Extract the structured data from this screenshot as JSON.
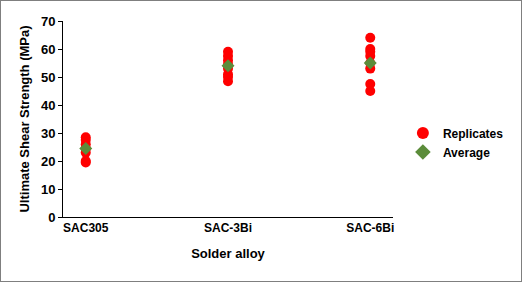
{
  "chart_data": {
    "type": "scatter",
    "x_label": "Solder alloy",
    "y_label": "Ultimate Shear Strength (MPa)",
    "categories": [
      "SAC305",
      "SAC-3Bi",
      "SAC-6Bi"
    ],
    "series": [
      {
        "name": "Replicates",
        "color": "#ff0000",
        "marker": "circle",
        "x": [
          "SAC305",
          "SAC305",
          "SAC305",
          "SAC305",
          "SAC305",
          "SAC305",
          "SAC305",
          "SAC-3Bi",
          "SAC-3Bi",
          "SAC-3Bi",
          "SAC-3Bi",
          "SAC-3Bi",
          "SAC-3Bi",
          "SAC-3Bi",
          "SAC-3Bi",
          "SAC-6Bi",
          "SAC-6Bi",
          "SAC-6Bi",
          "SAC-6Bi",
          "SAC-6Bi",
          "SAC-6Bi",
          "SAC-6Bi",
          "SAC-6Bi"
        ],
        "values": [
          28.5,
          27.5,
          26,
          24.5,
          23,
          20,
          19.5,
          59,
          57.5,
          56,
          54.5,
          53,
          51,
          50,
          48.5,
          64,
          60,
          59,
          57.5,
          55,
          53,
          47.5,
          45
        ]
      },
      {
        "name": "Average",
        "color": "#5b8c3a",
        "marker": "diamond",
        "x": [
          "SAC305",
          "SAC-3Bi",
          "SAC-6Bi"
        ],
        "values": [
          24.5,
          54,
          55
        ]
      }
    ],
    "ylim": [
      0,
      70
    ],
    "yticks": [
      0,
      10,
      20,
      30,
      40,
      50,
      60,
      70
    ],
    "grid": false,
    "legend": "right"
  }
}
